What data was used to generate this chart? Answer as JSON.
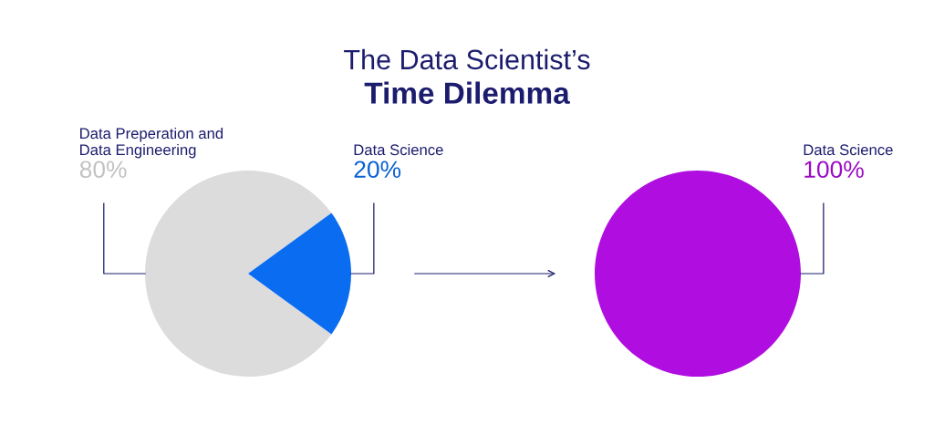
{
  "chart_data": [
    {
      "type": "pie",
      "title": "The Data Scientist’s",
      "subtitle": "Time Dilemma",
      "categories": [
        "Data Preperation and\nData Engineering",
        "Data Science"
      ],
      "values": [
        80,
        20
      ],
      "colors": [
        "#dcdcdc",
        "#0a6cf0"
      ],
      "value_labels": [
        "80%",
        "20%"
      ]
    },
    {
      "type": "pie",
      "categories": [
        "Data Science"
      ],
      "values": [
        100
      ],
      "colors": [
        "#b00ee0"
      ],
      "value_labels": [
        "100%"
      ]
    }
  ]
}
